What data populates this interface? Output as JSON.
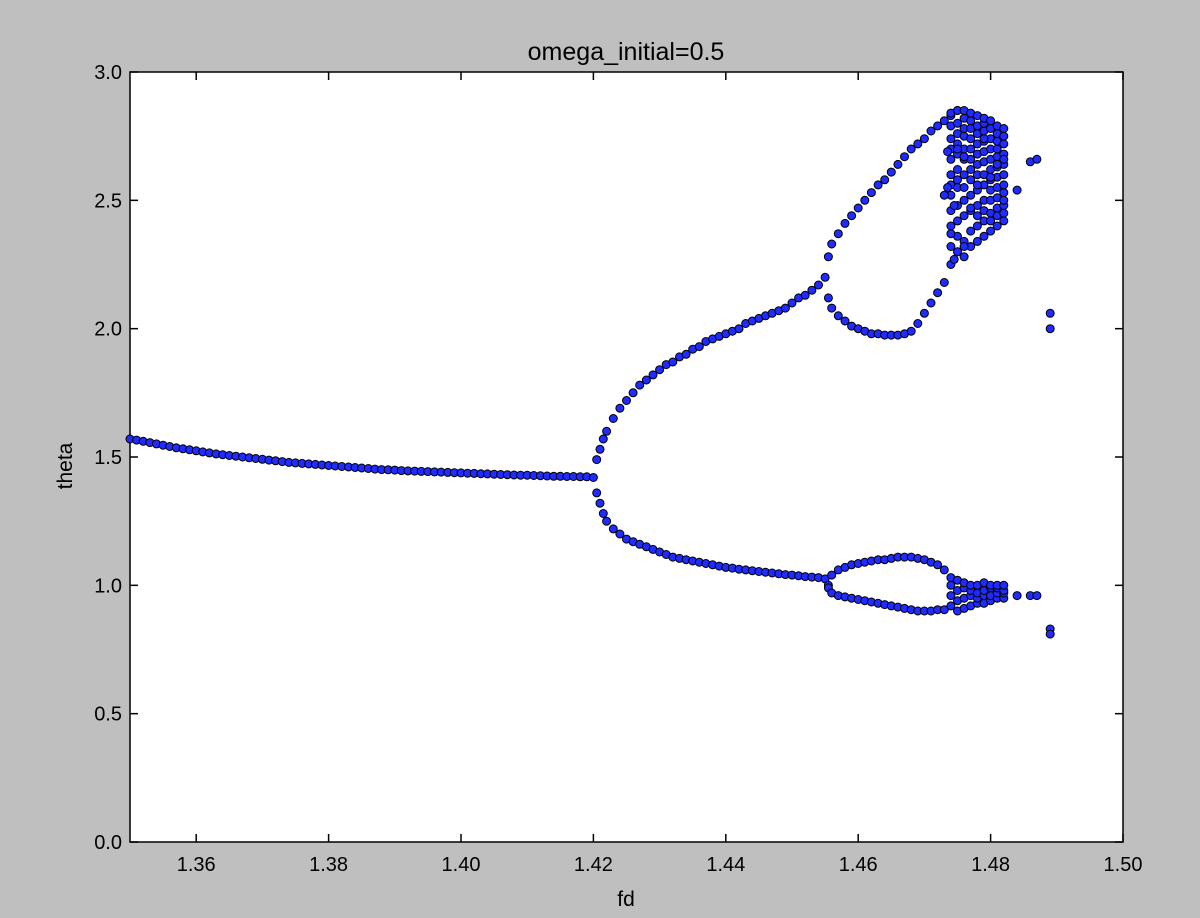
{
  "chart_data": {
    "type": "scatter",
    "title": "omega_initial=0.5",
    "xlabel": "fd",
    "ylabel": "theta",
    "xlim": [
      1.35,
      1.5
    ],
    "ylim": [
      0.0,
      3.0
    ],
    "grid": false,
    "legend": "none",
    "x_ticks": [
      "1.36",
      "1.38",
      "1.40",
      "1.42",
      "1.44",
      "1.46",
      "1.48",
      "1.50"
    ],
    "y_ticks": [
      "0.0",
      "0.5",
      "1.0",
      "1.5",
      "2.0",
      "2.5",
      "3.0"
    ],
    "x_tick_values": [
      1.36,
      1.38,
      1.4,
      1.42,
      1.44,
      1.46,
      1.48,
      1.5
    ],
    "y_tick_values": [
      0.0,
      0.5,
      1.0,
      1.5,
      2.0,
      2.5,
      3.0
    ],
    "marker_color": "#1f2bff",
    "marker_edge_color": "#000000",
    "background_color": "#bfbfbf",
    "plot_face_color": "#ffffff",
    "series": [
      {
        "x": [
          1.35,
          1.351,
          1.352,
          1.353,
          1.354,
          1.355,
          1.356,
          1.357,
          1.358,
          1.359,
          1.36,
          1.361,
          1.362,
          1.363,
          1.364,
          1.365,
          1.366,
          1.367,
          1.368,
          1.369,
          1.37,
          1.371,
          1.372,
          1.373,
          1.374,
          1.375,
          1.376,
          1.377,
          1.378,
          1.379,
          1.38,
          1.381,
          1.382,
          1.383,
          1.384,
          1.385,
          1.386,
          1.387,
          1.388,
          1.389,
          1.39,
          1.391,
          1.392,
          1.393,
          1.394,
          1.395,
          1.396,
          1.397,
          1.398,
          1.399,
          1.4,
          1.401,
          1.402,
          1.403,
          1.404,
          1.405,
          1.406,
          1.407,
          1.408,
          1.409,
          1.41,
          1.411,
          1.412,
          1.413,
          1.414,
          1.415,
          1.416,
          1.417,
          1.418,
          1.419,
          1.42,
          1.4205,
          1.421,
          1.4215,
          1.422,
          1.423,
          1.424,
          1.425,
          1.426,
          1.427,
          1.428,
          1.429,
          1.43,
          1.431,
          1.432,
          1.433,
          1.434,
          1.435,
          1.436,
          1.437,
          1.438,
          1.439,
          1.44,
          1.441,
          1.442,
          1.443,
          1.444,
          1.445,
          1.446,
          1.447,
          1.448,
          1.449,
          1.45,
          1.451,
          1.452,
          1.453,
          1.454,
          1.455,
          1.4205,
          1.421,
          1.4215,
          1.422,
          1.423,
          1.424,
          1.425,
          1.426,
          1.427,
          1.428,
          1.429,
          1.43,
          1.431,
          1.432,
          1.433,
          1.434,
          1.435,
          1.436,
          1.437,
          1.438,
          1.439,
          1.44,
          1.441,
          1.442,
          1.443,
          1.444,
          1.445,
          1.446,
          1.447,
          1.448,
          1.449,
          1.45,
          1.451,
          1.452,
          1.453,
          1.454,
          1.455,
          1.4555,
          1.456,
          1.457,
          1.458,
          1.459,
          1.46,
          1.461,
          1.462,
          1.463,
          1.464,
          1.465,
          1.466,
          1.467,
          1.468,
          1.469,
          1.47,
          1.471,
          1.472,
          1.473,
          1.474,
          1.475,
          1.4555,
          1.456,
          1.457,
          1.458,
          1.459,
          1.46,
          1.461,
          1.462,
          1.463,
          1.464,
          1.465,
          1.466,
          1.467,
          1.468,
          1.469,
          1.47,
          1.471,
          1.472,
          1.473,
          1.4555,
          1.456,
          1.457,
          1.458,
          1.459,
          1.46,
          1.461,
          1.462,
          1.463,
          1.464,
          1.465,
          1.466,
          1.467,
          1.468,
          1.469,
          1.47,
          1.471,
          1.472,
          1.473,
          1.4555,
          1.456,
          1.457,
          1.458,
          1.459,
          1.46,
          1.461,
          1.462,
          1.463,
          1.464,
          1.465,
          1.466,
          1.467,
          1.468,
          1.469,
          1.47,
          1.471,
          1.472,
          1.473,
          1.474,
          1.474,
          1.474,
          1.474,
          1.474,
          1.474,
          1.474,
          1.474,
          1.474,
          1.474,
          1.474,
          1.474,
          1.474,
          1.474,
          1.474,
          1.474,
          1.475,
          1.475,
          1.475,
          1.475,
          1.475,
          1.475,
          1.475,
          1.475,
          1.475,
          1.475,
          1.475,
          1.475,
          1.475,
          1.475,
          1.475,
          1.475,
          1.476,
          1.476,
          1.476,
          1.476,
          1.476,
          1.476,
          1.476,
          1.476,
          1.476,
          1.476,
          1.476,
          1.476,
          1.476,
          1.476,
          1.476,
          1.476,
          1.477,
          1.477,
          1.477,
          1.477,
          1.477,
          1.477,
          1.477,
          1.477,
          1.477,
          1.477,
          1.477,
          1.477,
          1.477,
          1.477,
          1.477,
          1.477,
          1.478,
          1.478,
          1.478,
          1.478,
          1.478,
          1.478,
          1.478,
          1.478,
          1.478,
          1.478,
          1.478,
          1.478,
          1.478,
          1.478,
          1.478,
          1.478,
          1.479,
          1.479,
          1.479,
          1.479,
          1.479,
          1.479,
          1.479,
          1.479,
          1.479,
          1.479,
          1.479,
          1.479,
          1.479,
          1.479,
          1.479,
          1.479,
          1.48,
          1.48,
          1.48,
          1.48,
          1.48,
          1.48,
          1.48,
          1.48,
          1.48,
          1.48,
          1.48,
          1.48,
          1.48,
          1.48,
          1.48,
          1.48,
          1.481,
          1.481,
          1.481,
          1.481,
          1.481,
          1.481,
          1.481,
          1.481,
          1.481,
          1.481,
          1.481,
          1.481,
          1.481,
          1.481,
          1.481,
          1.481,
          1.482,
          1.482,
          1.482,
          1.482,
          1.482,
          1.482,
          1.482,
          1.482,
          1.482,
          1.482,
          1.482,
          1.482,
          1.482,
          1.482,
          1.482,
          1.482,
          1.473,
          1.4735,
          1.474,
          1.4745,
          1.4735,
          1.4745,
          1.475,
          1.475,
          1.476,
          1.476,
          1.477,
          1.478,
          1.479,
          1.48,
          1.481,
          1.482,
          1.484,
          1.486,
          1.487,
          1.484,
          1.486,
          1.487,
          1.489,
          1.489,
          1.489,
          1.489
        ],
        "y": [
          1.57,
          1.566,
          1.561,
          1.556,
          1.551,
          1.546,
          1.541,
          1.536,
          1.532,
          1.528,
          1.524,
          1.52,
          1.516,
          1.512,
          1.509,
          1.506,
          1.503,
          1.5,
          1.497,
          1.494,
          1.491,
          1.488,
          1.485,
          1.482,
          1.479,
          1.477,
          1.475,
          1.473,
          1.471,
          1.469,
          1.467,
          1.465,
          1.463,
          1.461,
          1.459,
          1.457,
          1.455,
          1.453,
          1.451,
          1.45,
          1.449,
          1.447,
          1.446,
          1.445,
          1.444,
          1.443,
          1.442,
          1.441,
          1.44,
          1.439,
          1.438,
          1.437,
          1.436,
          1.435,
          1.434,
          1.433,
          1.432,
          1.431,
          1.43,
          1.429,
          1.429,
          1.428,
          1.427,
          1.426,
          1.425,
          1.425,
          1.424,
          1.424,
          1.423,
          1.423,
          1.42,
          1.49,
          1.53,
          1.57,
          1.6,
          1.65,
          1.69,
          1.72,
          1.75,
          1.78,
          1.8,
          1.82,
          1.84,
          1.86,
          1.87,
          1.89,
          1.9,
          1.92,
          1.93,
          1.95,
          1.96,
          1.97,
          1.98,
          1.99,
          2.0,
          2.02,
          2.03,
          2.04,
          2.05,
          2.06,
          2.07,
          2.08,
          2.1,
          2.12,
          2.13,
          2.15,
          2.17,
          2.2,
          1.36,
          1.32,
          1.28,
          1.25,
          1.22,
          1.2,
          1.18,
          1.17,
          1.16,
          1.15,
          1.14,
          1.13,
          1.12,
          1.11,
          1.105,
          1.1,
          1.095,
          1.09,
          1.085,
          1.08,
          1.075,
          1.07,
          1.067,
          1.063,
          1.06,
          1.057,
          1.054,
          1.051,
          1.048,
          1.045,
          1.042,
          1.04,
          1.037,
          1.034,
          1.032,
          1.03,
          1.025,
          2.28,
          2.33,
          2.37,
          2.41,
          2.44,
          2.47,
          2.5,
          2.53,
          2.56,
          2.58,
          2.61,
          2.64,
          2.67,
          2.7,
          2.72,
          2.74,
          2.77,
          2.79,
          2.81,
          2.83,
          2.85,
          2.12,
          2.08,
          2.05,
          2.03,
          2.01,
          2.0,
          1.99,
          1.98,
          1.98,
          1.975,
          1.975,
          1.975,
          1.98,
          1.99,
          2.02,
          2.06,
          2.1,
          2.14,
          2.18,
          1.0,
          1.04,
          1.06,
          1.07,
          1.08,
          1.085,
          1.09,
          1.095,
          1.1,
          1.1,
          1.105,
          1.11,
          1.11,
          1.11,
          1.105,
          1.1,
          1.09,
          1.08,
          1.06,
          0.99,
          0.97,
          0.96,
          0.955,
          0.95,
          0.945,
          0.94,
          0.935,
          0.93,
          0.925,
          0.92,
          0.915,
          0.91,
          0.905,
          0.9,
          0.9,
          0.9,
          0.905,
          0.905,
          0.92,
          0.96,
          1.0,
          1.03,
          2.25,
          2.32,
          2.4,
          2.46,
          2.52,
          2.56,
          2.6,
          2.66,
          2.7,
          2.74,
          2.79,
          2.84,
          0.9,
          0.94,
          0.98,
          1.02,
          2.3,
          2.36,
          2.42,
          2.48,
          2.55,
          2.58,
          2.62,
          2.68,
          2.72,
          2.76,
          2.8,
          2.85,
          0.91,
          0.95,
          0.99,
          1.01,
          2.28,
          2.34,
          2.44,
          2.5,
          2.55,
          2.6,
          2.66,
          2.7,
          2.75,
          2.78,
          2.82,
          2.85,
          0.92,
          0.96,
          0.98,
          1.0,
          2.32,
          2.38,
          2.46,
          2.52,
          2.58,
          2.62,
          2.66,
          2.7,
          2.74,
          2.78,
          2.81,
          2.84,
          0.93,
          0.95,
          0.97,
          1.0,
          2.34,
          2.4,
          2.44,
          2.48,
          2.54,
          2.6,
          2.64,
          2.68,
          2.72,
          2.76,
          2.79,
          2.83,
          0.93,
          0.96,
          0.98,
          1.01,
          2.36,
          2.42,
          2.46,
          2.5,
          2.56,
          2.6,
          2.65,
          2.69,
          2.73,
          2.77,
          2.8,
          2.82,
          0.94,
          0.96,
          0.99,
          1.0,
          2.38,
          2.42,
          2.45,
          2.5,
          2.54,
          2.58,
          2.62,
          2.66,
          2.7,
          2.74,
          2.78,
          2.81,
          0.95,
          0.97,
          0.99,
          1.0,
          2.4,
          2.44,
          2.47,
          2.51,
          2.55,
          2.59,
          2.63,
          2.67,
          2.7,
          2.73,
          2.76,
          2.79,
          0.95,
          0.97,
          0.98,
          1.0,
          2.42,
          2.45,
          2.48,
          2.5,
          2.53,
          2.56,
          2.6,
          2.64,
          2.68,
          2.72,
          2.75,
          2.78,
          2.52,
          2.55,
          2.37,
          2.48,
          2.69,
          2.27,
          2.3,
          2.7,
          2.67,
          2.32,
          2.47,
          2.56,
          2.74,
          2.59,
          2.64,
          2.66,
          2.54,
          2.65,
          2.66,
          0.96,
          0.96,
          0.96,
          2.06,
          2.0,
          0.83,
          0.81
        ]
      }
    ]
  }
}
